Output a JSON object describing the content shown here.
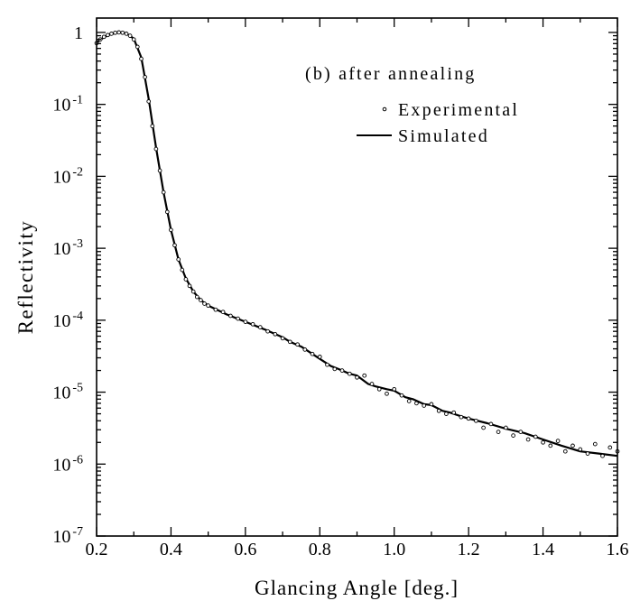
{
  "chart_data": {
    "type": "line",
    "title": "",
    "annotation": "(b) after annealing",
    "xlabel": "Glancing Angle [deg.]",
    "ylabel": "Reflectivity",
    "xlim": [
      0.2,
      1.6
    ],
    "ylim_log10": [
      -7,
      0.2
    ],
    "yscale": "log",
    "x_ticks": [
      {
        "value": 0.2,
        "label": "0.2"
      },
      {
        "value": 0.4,
        "label": "0.4"
      },
      {
        "value": 0.6,
        "label": "0.6"
      },
      {
        "value": 0.8,
        "label": "0.8"
      },
      {
        "value": 1.0,
        "label": "1.0"
      },
      {
        "value": 1.2,
        "label": "1.2"
      },
      {
        "value": 1.4,
        "label": "1.4"
      },
      {
        "value": 1.6,
        "label": "1.6"
      }
    ],
    "y_ticks": [
      {
        "exp": 0,
        "base": "1",
        "sup": ""
      },
      {
        "exp": -1,
        "base": "10",
        "sup": "-1"
      },
      {
        "exp": -2,
        "base": "10",
        "sup": "-2"
      },
      {
        "exp": -3,
        "base": "10",
        "sup": "-3"
      },
      {
        "exp": -4,
        "base": "10",
        "sup": "-4"
      },
      {
        "exp": -5,
        "base": "10",
        "sup": "-5"
      },
      {
        "exp": -6,
        "base": "10",
        "sup": "-6"
      },
      {
        "exp": -7,
        "base": "10",
        "sup": "-7"
      }
    ],
    "legend": {
      "placement": "top-right",
      "entries": [
        {
          "label": "Experimental",
          "marker": "open-circle"
        },
        {
          "label": "Simulated",
          "marker": "line"
        }
      ]
    },
    "series": [
      {
        "name": "Simulated",
        "style": "line",
        "color": "#000000",
        "x": [
          0.2,
          0.22,
          0.24,
          0.26,
          0.28,
          0.3,
          0.32,
          0.34,
          0.36,
          0.38,
          0.4,
          0.42,
          0.44,
          0.46,
          0.48,
          0.5,
          0.55,
          0.6,
          0.65,
          0.7,
          0.72,
          0.75,
          0.78,
          0.8,
          0.83,
          0.85,
          0.88,
          0.9,
          0.93,
          0.95,
          0.98,
          1.0,
          1.03,
          1.05,
          1.08,
          1.1,
          1.13,
          1.15,
          1.18,
          1.2,
          1.25,
          1.3,
          1.35,
          1.4,
          1.45,
          1.5,
          1.55,
          1.6
        ],
        "y": [
          0.72,
          0.86,
          0.95,
          1.0,
          0.97,
          0.82,
          0.45,
          0.12,
          0.025,
          0.006,
          0.0018,
          0.0007,
          0.00038,
          0.00025,
          0.00019,
          0.00016,
          0.00012,
          9.5e-05,
          7.5e-05,
          5.8e-05,
          5e-05,
          4.3e-05,
          3.4e-05,
          2.9e-05,
          2.3e-05,
          2.1e-05,
          1.8e-05,
          1.7e-05,
          1.3e-05,
          1.2e-05,
          1.1e-05,
          1.05e-05,
          8.5e-06,
          8e-06,
          6.8e-06,
          6.6e-06,
          5.5e-06,
          5.2e-06,
          4.6e-06,
          4.3e-06,
          3.7e-06,
          3.1e-06,
          2.7e-06,
          2.2e-06,
          1.8e-06,
          1.5e-06,
          1.4e-06,
          1.3e-06
        ]
      },
      {
        "name": "Experimental",
        "style": "scatter",
        "marker": "open-circle",
        "color": "#000000",
        "x": [
          0.2,
          0.21,
          0.22,
          0.23,
          0.24,
          0.25,
          0.26,
          0.27,
          0.28,
          0.29,
          0.3,
          0.31,
          0.32,
          0.33,
          0.34,
          0.35,
          0.36,
          0.37,
          0.38,
          0.39,
          0.4,
          0.41,
          0.42,
          0.43,
          0.44,
          0.45,
          0.46,
          0.47,
          0.48,
          0.49,
          0.5,
          0.52,
          0.54,
          0.56,
          0.58,
          0.6,
          0.62,
          0.64,
          0.66,
          0.68,
          0.7,
          0.72,
          0.74,
          0.76,
          0.78,
          0.8,
          0.82,
          0.84,
          0.86,
          0.88,
          0.9,
          0.92,
          0.94,
          0.96,
          0.98,
          1.0,
          1.02,
          1.04,
          1.06,
          1.08,
          1.1,
          1.12,
          1.14,
          1.16,
          1.18,
          1.2,
          1.22,
          1.24,
          1.26,
          1.28,
          1.3,
          1.32,
          1.34,
          1.36,
          1.38,
          1.4,
          1.42,
          1.44,
          1.46,
          1.48,
          1.5,
          1.52,
          1.54,
          1.56,
          1.58,
          1.6
        ],
        "y": [
          0.71,
          0.8,
          0.87,
          0.92,
          0.96,
          0.99,
          1.0,
          0.99,
          0.96,
          0.9,
          0.8,
          0.63,
          0.43,
          0.24,
          0.11,
          0.05,
          0.024,
          0.012,
          0.006,
          0.0032,
          0.0018,
          0.0011,
          0.0007,
          0.0005,
          0.00037,
          0.0003,
          0.00025,
          0.00021,
          0.00019,
          0.00017,
          0.00016,
          0.00014,
          0.00013,
          0.000115,
          0.000105,
          9.5e-05,
          8.8e-05,
          8e-05,
          7e-05,
          6.4e-05,
          5.6e-05,
          5e-05,
          4.6e-05,
          3.9e-05,
          3.4e-05,
          3.1e-05,
          2.4e-05,
          2.1e-05,
          2e-05,
          1.8e-05,
          1.6e-05,
          1.7e-05,
          1.3e-05,
          1.1e-05,
          9.5e-06,
          1.1e-05,
          9e-06,
          7.5e-06,
          7e-06,
          6.5e-06,
          6.8e-06,
          5.5e-06,
          5e-06,
          5.2e-06,
          4.5e-06,
          4.3e-06,
          4e-06,
          3.2e-06,
          3.6e-06,
          2.8e-06,
          3.2e-06,
          2.5e-06,
          2.8e-06,
          2.2e-06,
          2.4e-06,
          2e-06,
          1.8e-06,
          2.1e-06,
          1.5e-06,
          1.8e-06,
          1.6e-06,
          1.4e-06,
          1.9e-06,
          1.3e-06,
          1.7e-06,
          1.5e-06
        ]
      }
    ]
  }
}
